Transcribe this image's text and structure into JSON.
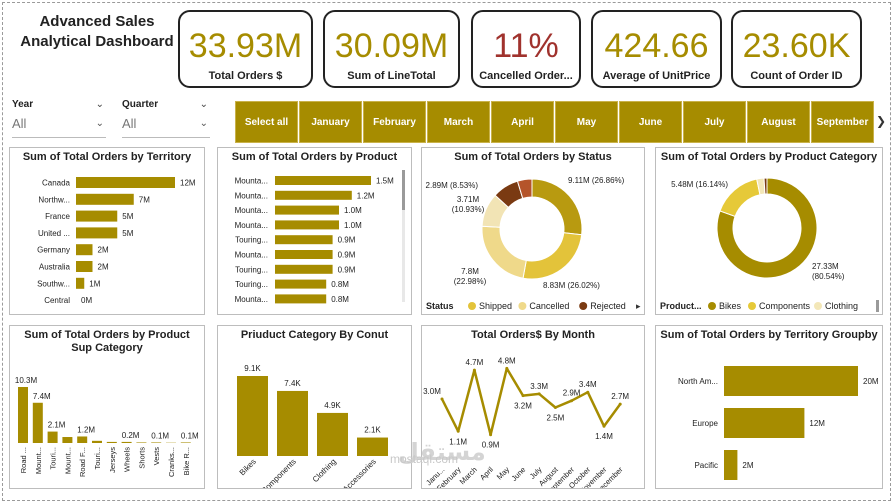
{
  "title": "Advanced Sales Analytical Dashboard",
  "accent_color": "#a68c00",
  "kpis": [
    {
      "value": "33.93M",
      "label": "Total Orders $",
      "color": "#a68c00"
    },
    {
      "value": "30.09M",
      "label": "Sum of LineTotal",
      "color": "#a68c00"
    },
    {
      "value": "11%",
      "label": "Cancelled Order...",
      "color": "#a0322d"
    },
    {
      "value": "424.66",
      "label": "Average of UnitPrice",
      "color": "#a68c00"
    },
    {
      "value": "23.60K",
      "label": "Count of Order ID",
      "color": "#a68c00"
    }
  ],
  "slicers": {
    "year": {
      "label": "Year",
      "value": "All"
    },
    "quarter": {
      "label": "Quarter",
      "value": "All"
    }
  },
  "month_buttons": [
    "Select all",
    "January",
    "February",
    "March",
    "April",
    "May",
    "June",
    "July",
    "August",
    "September"
  ],
  "charts": {
    "territory": {
      "title": "Sum of Total Orders by Territory",
      "chart_data": {
        "type": "bar",
        "orientation": "horizontal",
        "categories": [
          "Canada",
          "Northw...",
          "France",
          "United ...",
          "Germany",
          "Australia",
          "Southw...",
          "Central"
        ],
        "values": [
          12,
          7,
          5,
          5,
          2,
          2,
          1,
          0
        ],
        "data_labels": [
          "12M",
          "7M",
          "5M",
          "5M",
          "2M",
          "2M",
          "1M",
          "0M"
        ],
        "xlim": [
          0,
          12
        ]
      }
    },
    "product": {
      "title": "Sum of Total Orders by Product",
      "chart_data": {
        "type": "bar",
        "orientation": "horizontal",
        "categories": [
          "Mounta...",
          "Mounta...",
          "Mounta...",
          "Mounta...",
          "Touring...",
          "Mounta...",
          "Touring...",
          "Touring...",
          "Mounta..."
        ],
        "values": [
          1.5,
          1.2,
          1.0,
          1.0,
          0.9,
          0.9,
          0.9,
          0.8,
          0.8
        ],
        "data_labels": [
          "1.5M",
          "1.2M",
          "1.0M",
          "1.0M",
          "0.9M",
          "0.9M",
          "0.9M",
          "0.8M",
          "0.8M"
        ],
        "xlim": [
          0,
          1.5
        ]
      }
    },
    "status": {
      "title": "Sum of Total Orders by Status",
      "chart_data": {
        "type": "pie",
        "donut": true,
        "slices": [
          {
            "name": "Shipped",
            "value": 9.11,
            "label": "9.11M (26.86%)",
            "color": "#b89a10"
          },
          {
            "name": "Shipped",
            "value": 8.83,
            "label": "8.83M (26.02%)",
            "color": "#e3c33a"
          },
          {
            "name": "Cancelled",
            "value": 7.8,
            "label": "7.8M\n(22.98%)",
            "color": "#efd98a"
          },
          {
            "name": "Cancelled",
            "value": 3.71,
            "label": "3.71M\n(10.93%)",
            "color": "#f2e4b5"
          },
          {
            "name": "Rejected",
            "value": 2.89,
            "label": "2.89M (8.53%)",
            "color": "#7a3a12"
          },
          {
            "name": "Rejected",
            "value": 1.59,
            "label": "",
            "color": "#b5542a"
          }
        ]
      },
      "legend_title": "Status",
      "legend": [
        {
          "name": "Shipped",
          "color": "#e3c33a"
        },
        {
          "name": "Cancelled",
          "color": "#efd98a"
        },
        {
          "name": "Rejected",
          "color": "#7a3a12"
        }
      ]
    },
    "category": {
      "title": "Sum of Total Orders by Product Category",
      "chart_data": {
        "type": "pie",
        "donut": true,
        "slices": [
          {
            "name": "Bikes",
            "value": 27.33,
            "label": "27.33M\n(80.54%)",
            "color": "#a68c00"
          },
          {
            "name": "Components",
            "value": 5.48,
            "label": "5.48M (16.14%)",
            "color": "#e6c938"
          },
          {
            "name": "Clothing",
            "value": 0.8,
            "label": "",
            "color": "#f3e7b8"
          },
          {
            "name": "Accessories",
            "value": 0.32,
            "label": "",
            "color": "#7a3a12"
          }
        ]
      },
      "legend_title": "Product...",
      "legend": [
        {
          "name": "Bikes",
          "color": "#a68c00"
        },
        {
          "name": "Components",
          "color": "#e6c938"
        },
        {
          "name": "Clothing",
          "color": "#f3e7b8"
        }
      ]
    },
    "subcategory": {
      "title": "Sum of Total Orders by Product Sup Category",
      "chart_data": {
        "type": "bar",
        "categories": [
          "Road ...",
          "Mount...",
          "Touri...",
          "Mount...",
          "Road F...",
          "Touri...",
          "Jerseys",
          "Wheels",
          "Shorts",
          "Vests",
          "Cranks...",
          "Bike R..."
        ],
        "values": [
          10.3,
          7.4,
          2.1,
          1.1,
          1.2,
          0.4,
          0.2,
          0.2,
          0.1,
          0.1,
          0.05,
          0.1
        ],
        "data_labels": {
          "0": "10.3M",
          "1": "7.4M",
          "2": "2.1M",
          "4": "1.2M",
          "7": "0.2M",
          "9": "0.1M",
          "11": "0.1M"
        },
        "ylim": [
          0,
          10.3
        ]
      }
    },
    "count": {
      "title": "Priuduct Category By Conut",
      "chart_data": {
        "type": "bar",
        "categories": [
          "Bikes",
          "Components",
          "Clothing",
          "Accessories"
        ],
        "values": [
          9.1,
          7.4,
          4.9,
          2.1
        ],
        "data_labels": [
          "9.1K",
          "7.4K",
          "4.9K",
          "2.1K"
        ],
        "ylim": [
          0,
          9.1
        ]
      }
    },
    "month": {
      "title": "Total Orders$ By Month",
      "chart_data": {
        "type": "line",
        "categories": [
          "Janu...",
          "February",
          "March",
          "April",
          "May",
          "June",
          "July",
          "August",
          "September",
          "October",
          "November",
          "December"
        ],
        "values": [
          3.0,
          1.1,
          4.7,
          0.9,
          4.8,
          3.2,
          3.3,
          2.5,
          2.9,
          3.4,
          1.4,
          2.7
        ],
        "data_labels": [
          "3.0M",
          "1.1M",
          "4.7M",
          "0.9M",
          "4.8M",
          "3.2M",
          "3.3M",
          "2.5M",
          "2.9M",
          "3.4M",
          "1.4M",
          "2.7M"
        ]
      }
    },
    "groupby": {
      "title": "Sum of Total Orders by Territory Groupby",
      "chart_data": {
        "type": "bar",
        "orientation": "horizontal",
        "categories": [
          "North Am...",
          "Europe",
          "Pacific"
        ],
        "values": [
          20,
          12,
          2
        ],
        "data_labels": [
          "20M",
          "12M",
          "2M"
        ],
        "xlim": [
          0,
          20
        ]
      }
    }
  },
  "watermark": {
    "arabic": "مستقل",
    "latin": "mostaql.com"
  }
}
